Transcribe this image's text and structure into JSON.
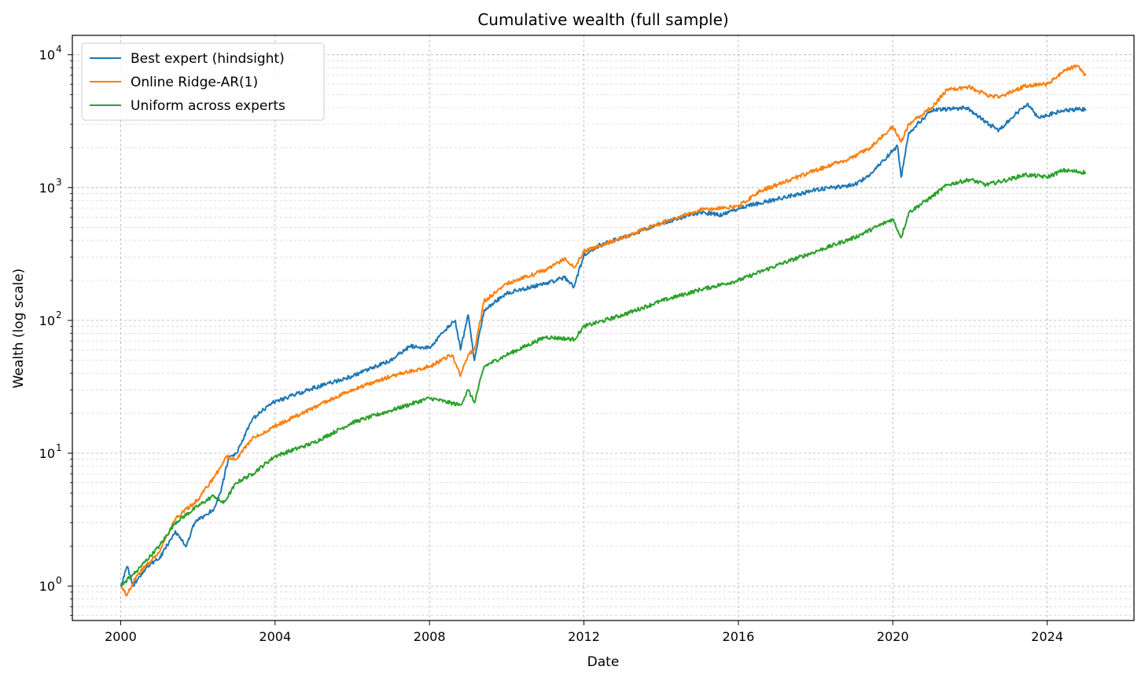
{
  "chart_data": {
    "type": "line",
    "title": "Cumulative wealth (full sample)",
    "xlabel": "Date",
    "ylabel": "Wealth (log scale)",
    "x_scale": "time",
    "y_scale": "log",
    "xlim": [
      "1998-10-01",
      "2026-04-01"
    ],
    "ylim": [
      0.55,
      14000
    ],
    "x_ticks": [
      {
        "value": "2000-01-01",
        "label": "2000"
      },
      {
        "value": "2004-01-01",
        "label": "2004"
      },
      {
        "value": "2008-01-01",
        "label": "2008"
      },
      {
        "value": "2012-01-01",
        "label": "2012"
      },
      {
        "value": "2016-01-01",
        "label": "2016"
      },
      {
        "value": "2020-01-01",
        "label": "2020"
      },
      {
        "value": "2024-01-01",
        "label": "2024"
      }
    ],
    "y_ticks": [
      {
        "value": 1,
        "base": "10",
        "exp": "0"
      },
      {
        "value": 10,
        "base": "10",
        "exp": "1"
      },
      {
        "value": 100,
        "base": "10",
        "exp": "2"
      },
      {
        "value": 1000,
        "base": "10",
        "exp": "3"
      },
      {
        "value": 10000,
        "base": "10",
        "exp": "4"
      }
    ],
    "grid": true,
    "legend": "top-left",
    "series": [
      {
        "name": "Best expert (hindsight)",
        "color": "#1f77b4",
        "points": [
          [
            "2000-01-01",
            1.0
          ],
          [
            "2000-03-01",
            1.4
          ],
          [
            "2000-05-01",
            1.0
          ],
          [
            "2000-09-01",
            1.4
          ],
          [
            "2001-01-01",
            1.6
          ],
          [
            "2001-06-01",
            2.6
          ],
          [
            "2001-08-01",
            2.2
          ],
          [
            "2001-09-15",
            2.0
          ],
          [
            "2001-12-01",
            3.0
          ],
          [
            "2002-06-01",
            3.8
          ],
          [
            "2002-08-01",
            5.0
          ],
          [
            "2002-10-15",
            9.0
          ],
          [
            "2003-01-01",
            10.0
          ],
          [
            "2003-06-01",
            18.0
          ],
          [
            "2003-12-01",
            24.0
          ],
          [
            "2004-06-01",
            27.0
          ],
          [
            "2005-01-01",
            31.0
          ],
          [
            "2006-01-01",
            38.0
          ],
          [
            "2007-01-01",
            50.0
          ],
          [
            "2007-07-01",
            64.0
          ],
          [
            "2008-01-01",
            62.0
          ],
          [
            "2008-06-01",
            85.0
          ],
          [
            "2008-09-01",
            100.0
          ],
          [
            "2008-10-20",
            60.0
          ],
          [
            "2009-01-01",
            110.0
          ],
          [
            "2009-03-01",
            50.0
          ],
          [
            "2009-06-01",
            120.0
          ],
          [
            "2010-01-01",
            160.0
          ],
          [
            "2011-01-01",
            190.0
          ],
          [
            "2011-07-01",
            210.0
          ],
          [
            "2011-10-01",
            180.0
          ],
          [
            "2012-01-01",
            310.0
          ],
          [
            "2012-06-01",
            370.0
          ],
          [
            "2013-01-01",
            420.0
          ],
          [
            "2014-01-01",
            540.0
          ],
          [
            "2015-01-01",
            650.0
          ],
          [
            "2015-08-01",
            620.0
          ],
          [
            "2016-01-01",
            700.0
          ],
          [
            "2017-01-01",
            820.0
          ],
          [
            "2018-01-01",
            960.0
          ],
          [
            "2019-01-01",
            1050.0
          ],
          [
            "2019-06-01",
            1250.0
          ],
          [
            "2020-01-01",
            1900.0
          ],
          [
            "2020-02-15",
            2050.0
          ],
          [
            "2020-03-20",
            1200.0
          ],
          [
            "2020-06-01",
            2600.0
          ],
          [
            "2021-01-01",
            3800.0
          ],
          [
            "2021-06-01",
            3900.0
          ],
          [
            "2021-12-01",
            4000.0
          ],
          [
            "2022-06-01",
            3100.0
          ],
          [
            "2022-10-01",
            2700.0
          ],
          [
            "2023-01-01",
            3200.0
          ],
          [
            "2023-07-01",
            4300.0
          ],
          [
            "2023-10-01",
            3400.0
          ],
          [
            "2024-01-01",
            3500.0
          ],
          [
            "2024-06-01",
            3800.0
          ],
          [
            "2025-01-01",
            3900.0
          ]
        ]
      },
      {
        "name": "Online Ridge-AR(1)",
        "color": "#ff7f0e",
        "points": [
          [
            "2000-01-01",
            1.0
          ],
          [
            "2000-03-01",
            0.85
          ],
          [
            "2000-06-01",
            1.2
          ],
          [
            "2001-01-01",
            1.8
          ],
          [
            "2001-06-01",
            3.2
          ],
          [
            "2002-01-01",
            4.5
          ],
          [
            "2002-06-01",
            6.5
          ],
          [
            "2002-10-01",
            9.5
          ],
          [
            "2003-01-01",
            9.0
          ],
          [
            "2003-06-01",
            13.0
          ],
          [
            "2004-01-01",
            16.0
          ],
          [
            "2005-01-01",
            22.0
          ],
          [
            "2006-01-01",
            30.0
          ],
          [
            "2007-01-01",
            38.0
          ],
          [
            "2008-01-01",
            45.0
          ],
          [
            "2008-08-01",
            55.0
          ],
          [
            "2008-10-20",
            38.0
          ],
          [
            "2009-01-01",
            55.0
          ],
          [
            "2009-03-01",
            60.0
          ],
          [
            "2009-06-01",
            140.0
          ],
          [
            "2010-01-01",
            190.0
          ],
          [
            "2011-01-01",
            240.0
          ],
          [
            "2011-07-01",
            290.0
          ],
          [
            "2011-10-01",
            250.0
          ],
          [
            "2012-01-01",
            330.0
          ],
          [
            "2013-01-01",
            420.0
          ],
          [
            "2014-01-01",
            540.0
          ],
          [
            "2015-01-01",
            680.0
          ],
          [
            "2016-01-01",
            720.0
          ],
          [
            "2016-08-01",
            950.0
          ],
          [
            "2017-01-01",
            1050.0
          ],
          [
            "2018-01-01",
            1350.0
          ],
          [
            "2019-01-01",
            1700.0
          ],
          [
            "2019-06-01",
            2000.0
          ],
          [
            "2020-01-01",
            2900.0
          ],
          [
            "2020-03-20",
            2200.0
          ],
          [
            "2020-06-01",
            3000.0
          ],
          [
            "2021-01-01",
            4000.0
          ],
          [
            "2021-06-01",
            5500.0
          ],
          [
            "2022-01-01",
            5700.0
          ],
          [
            "2022-06-01",
            5000.0
          ],
          [
            "2022-10-01",
            4800.0
          ],
          [
            "2023-06-01",
            5800.0
          ],
          [
            "2024-01-01",
            6000.0
          ],
          [
            "2024-06-01",
            7500.0
          ],
          [
            "2024-10-01",
            8300.0
          ],
          [
            "2025-01-01",
            7000.0
          ]
        ]
      },
      {
        "name": "Uniform across experts",
        "color": "#2ca02c",
        "points": [
          [
            "2000-01-01",
            1.0
          ],
          [
            "2000-06-01",
            1.3
          ],
          [
            "2001-01-01",
            2.0
          ],
          [
            "2001-06-01",
            3.0
          ],
          [
            "2002-01-01",
            4.0
          ],
          [
            "2002-06-01",
            4.8
          ],
          [
            "2002-09-01",
            4.2
          ],
          [
            "2003-01-01",
            6.0
          ],
          [
            "2003-06-01",
            7.0
          ],
          [
            "2004-01-01",
            9.5
          ],
          [
            "2005-01-01",
            12.0
          ],
          [
            "2006-01-01",
            17.0
          ],
          [
            "2007-01-01",
            21.0
          ],
          [
            "2008-01-01",
            26.0
          ],
          [
            "2008-10-20",
            23.0
          ],
          [
            "2009-01-01",
            30.0
          ],
          [
            "2009-03-01",
            24.0
          ],
          [
            "2009-06-01",
            45.0
          ],
          [
            "2010-01-01",
            55.0
          ],
          [
            "2011-01-01",
            75.0
          ],
          [
            "2011-10-01",
            72.0
          ],
          [
            "2012-01-01",
            90.0
          ],
          [
            "2013-01-01",
            110.0
          ],
          [
            "2014-01-01",
            140.0
          ],
          [
            "2015-01-01",
            170.0
          ],
          [
            "2016-01-01",
            200.0
          ],
          [
            "2017-01-01",
            260.0
          ],
          [
            "2018-01-01",
            330.0
          ],
          [
            "2019-01-01",
            420.0
          ],
          [
            "2020-01-01",
            580.0
          ],
          [
            "2020-03-20",
            420.0
          ],
          [
            "2020-06-01",
            650.0
          ],
          [
            "2021-01-01",
            850.0
          ],
          [
            "2021-06-01",
            1050.0
          ],
          [
            "2022-01-01",
            1150.0
          ],
          [
            "2022-06-01",
            1050.0
          ],
          [
            "2023-01-01",
            1150.0
          ],
          [
            "2023-06-01",
            1250.0
          ],
          [
            "2024-01-01",
            1200.0
          ],
          [
            "2024-06-01",
            1350.0
          ],
          [
            "2025-01-01",
            1300.0
          ]
        ]
      }
    ]
  }
}
